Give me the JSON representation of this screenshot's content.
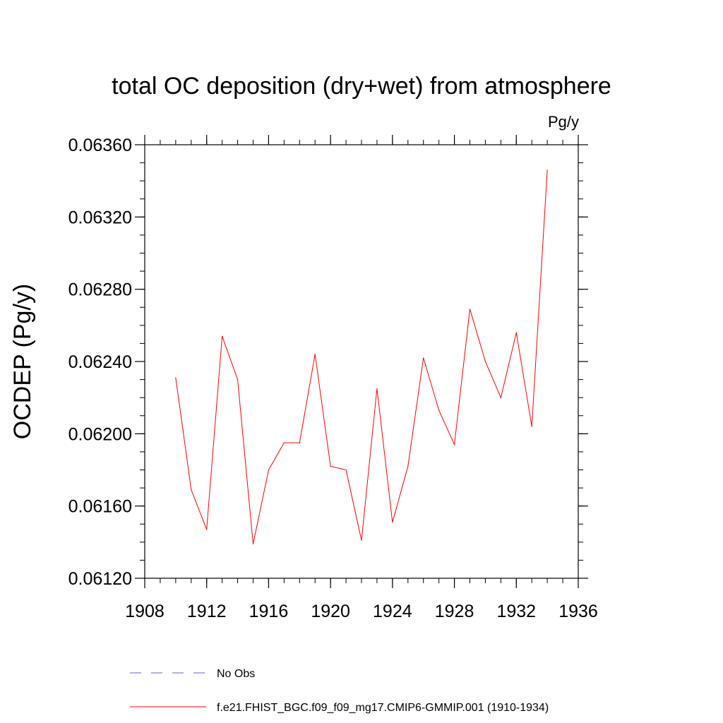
{
  "chart_data": {
    "type": "line",
    "title": "total OC deposition (dry+wet) from atmosphere",
    "units_label": "Pg/y",
    "ylabel": "OCDEP  (Pg/y)",
    "xlabel": "",
    "xlim": [
      1908,
      1936
    ],
    "ylim": [
      0.0612,
      0.0636
    ],
    "x_ticks": [
      1908,
      1912,
      1916,
      1920,
      1924,
      1928,
      1932,
      1936
    ],
    "x_tick_labels": [
      "1908",
      "1912",
      "1916",
      "1920",
      "1924",
      "1928",
      "1932",
      "1936"
    ],
    "y_ticks": [
      0.0612,
      0.0616,
      0.062,
      0.0624,
      0.0628,
      0.0632,
      0.0636
    ],
    "y_tick_labels": [
      "0.06120",
      "0.06160",
      "0.06200",
      "0.06240",
      "0.06280",
      "0.06320",
      "0.06360"
    ],
    "x_minor_step": 1,
    "y_minor_step": 0.0001,
    "grid": false,
    "series": [
      {
        "name": "f.e21.FHIST_BGC.f09_f09_mg17.CMIP6-GMMIP.001 (1910-1934)",
        "color": "#ff0000",
        "style": "solid",
        "x": [
          1910,
          1911,
          1912,
          1913,
          1914,
          1915,
          1916,
          1917,
          1918,
          1919,
          1920,
          1921,
          1922,
          1923,
          1924,
          1925,
          1926,
          1927,
          1928,
          1929,
          1930,
          1931,
          1932,
          1933,
          1934
        ],
        "values": [
          0.06231,
          0.06169,
          0.06147,
          0.06254,
          0.0623,
          0.06139,
          0.0618,
          0.06195,
          0.06195,
          0.06244,
          0.06182,
          0.0618,
          0.06141,
          0.06225,
          0.06151,
          0.06182,
          0.06242,
          0.06213,
          0.06194,
          0.06269,
          0.0624,
          0.0622,
          0.06256,
          0.06204,
          0.06346
        ]
      }
    ],
    "legend": {
      "placement": "bottom",
      "entries": [
        {
          "label": "No Obs",
          "color": "#6666cc",
          "style": "dashed"
        },
        {
          "label": "f.e21.FHIST_BGC.f09_f09_mg17.CMIP6-GMMIP.001 (1910-1934)",
          "color": "#ff0000",
          "style": "solid"
        }
      ]
    }
  }
}
